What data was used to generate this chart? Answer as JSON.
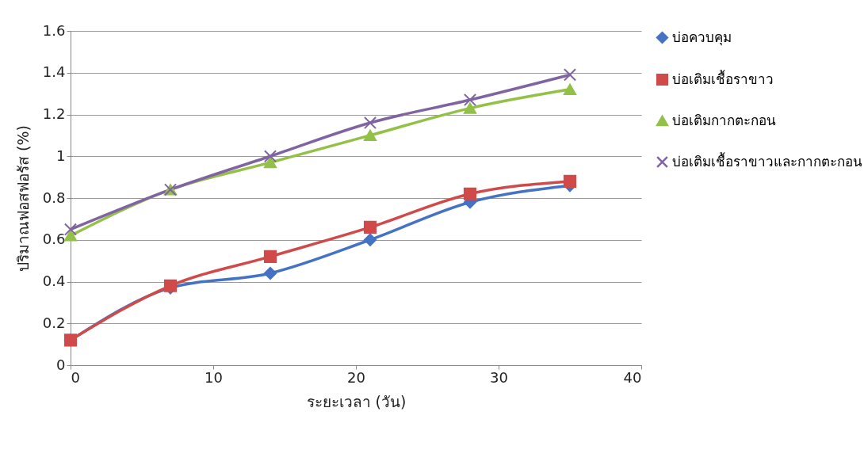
{
  "chart_data": {
    "type": "line",
    "xlabel": "ระยะเวลา (วัน)",
    "ylabel": "ปริมาณฟอสฟอรัส (%)",
    "x": [
      0,
      7,
      14,
      21,
      28,
      35
    ],
    "series": [
      {
        "name": "บ่อควบคุม",
        "color": "#4472c4",
        "marker": "diamond",
        "values": [
          0.12,
          0.37,
          0.44,
          0.6,
          0.78,
          0.86
        ]
      },
      {
        "name": "บ่อเติมเชื้อราขาว",
        "color": "#d04a4a",
        "marker": "square",
        "values": [
          0.12,
          0.38,
          0.52,
          0.66,
          0.82,
          0.88
        ]
      },
      {
        "name": "บ่อเติมกากตะกอน",
        "color": "#93c047",
        "marker": "triangle",
        "values": [
          0.62,
          0.84,
          0.97,
          1.1,
          1.23,
          1.32
        ]
      },
      {
        "name": "บ่อเติมเชื้อราขาวและกากตะกอน",
        "color": "#8064a2",
        "marker": "cross",
        "values": [
          0.65,
          0.84,
          1.0,
          1.16,
          1.27,
          1.39
        ]
      }
    ],
    "xlim": [
      0,
      40
    ],
    "xticks": [
      0,
      10,
      20,
      30,
      40
    ],
    "ylim": [
      0,
      1.6
    ],
    "yticks": [
      0,
      0.2,
      0.4,
      0.6,
      0.8,
      1,
      1.2,
      1.4,
      1.6
    ],
    "grid": "y",
    "legend": "right"
  }
}
